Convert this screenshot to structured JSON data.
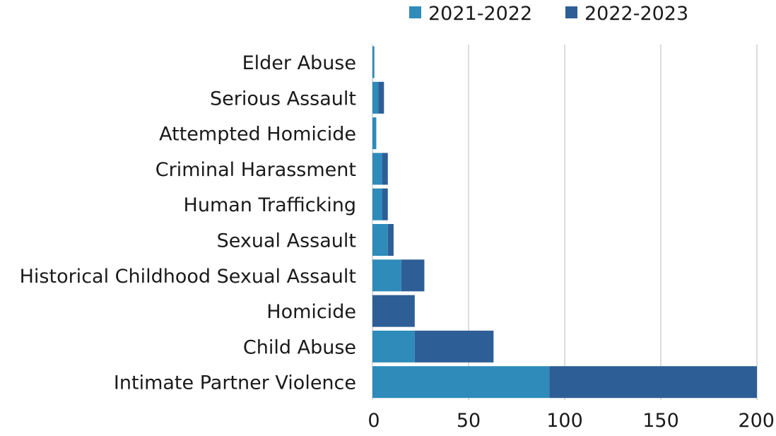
{
  "chart_data": {
    "type": "bar",
    "orientation": "horizontal",
    "stacked": true,
    "categories": [
      "Elder Abuse",
      "Serious Assault",
      "Attempted Homicide",
      "Criminal Harassment",
      "Human Trafficking",
      "Sexual Assault",
      "Historical Childhood Sexual Assault",
      "Homicide",
      "Child Abuse",
      "Intimate Partner Violence"
    ],
    "series": [
      {
        "name": "2021-2022",
        "color": "#2E8BBA",
        "values": [
          1,
          3,
          2,
          5,
          5,
          8,
          15,
          0,
          22,
          92
        ]
      },
      {
        "name": "2022-2023",
        "color": "#2E5E96",
        "values": [
          0,
          3,
          0,
          3,
          3,
          3,
          12,
          22,
          41,
          108
        ]
      }
    ],
    "xticks": [
      "0",
      "50",
      "100",
      "150",
      "200"
    ],
    "xlim": [
      0,
      200
    ],
    "grid": "vertical",
    "legend_position": "top"
  }
}
